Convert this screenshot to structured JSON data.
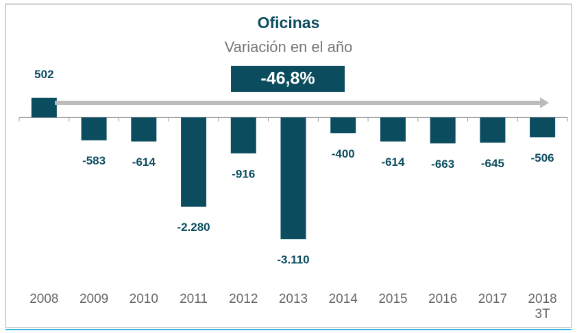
{
  "chart_data": {
    "type": "bar",
    "title": "Oficinas",
    "subtitle": "Variación en el año",
    "annotation": "-46,8%",
    "categories": [
      "2008",
      "2009",
      "2010",
      "2011",
      "2012",
      "2013",
      "2014",
      "2015",
      "2016",
      "2017",
      "2018\n3T"
    ],
    "values": [
      502,
      -583,
      -614,
      -2280,
      -916,
      -3110,
      -400,
      -614,
      -663,
      -645,
      -506
    ],
    "value_labels": [
      "502",
      "-583",
      "-614",
      "-2.280",
      "-916",
      "-3.110",
      "-400",
      "-614",
      "-663",
      "-645",
      "-506"
    ],
    "color": "#0b4c5f",
    "ylim": [
      -4000,
      2300
    ]
  }
}
